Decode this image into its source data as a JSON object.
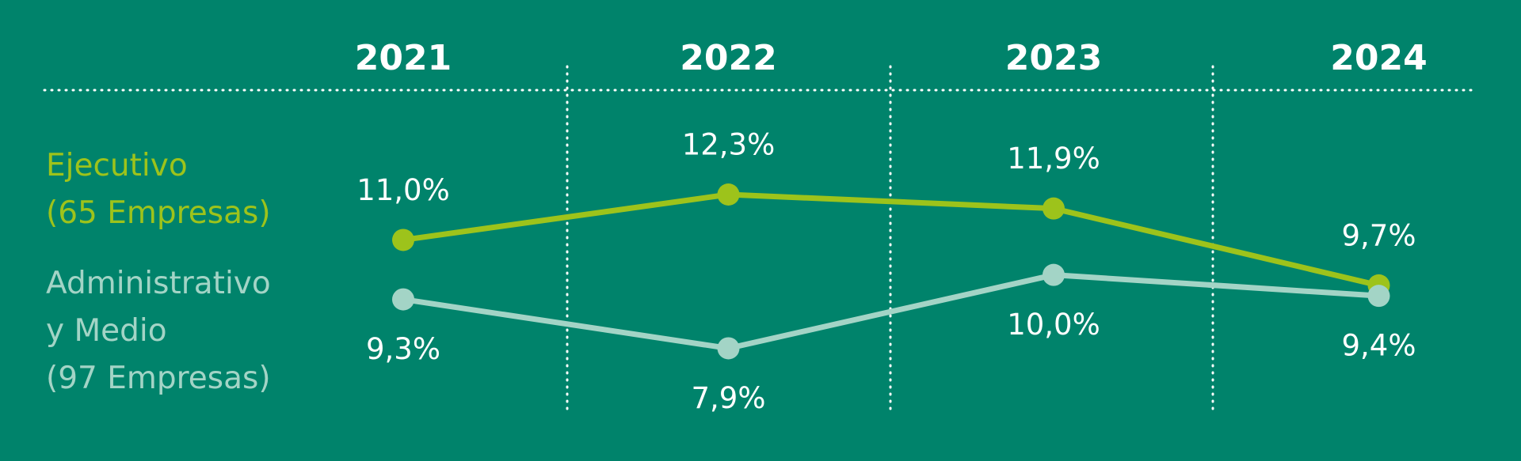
{
  "chart_data": {
    "type": "line",
    "categories": [
      "2021",
      "2022",
      "2023",
      "2024"
    ],
    "series": [
      {
        "name": "Ejecutivo\n(65 Empresas)",
        "color": "#9dc31b",
        "values": [
          11.0,
          12.3,
          11.9,
          9.7
        ],
        "value_labels": [
          "11,0%",
          "12,3%",
          "11,9%",
          "9,7%"
        ]
      },
      {
        "name": "Administrativo\ny Medio\n(97 Empresas)",
        "color": "#a3d4c6",
        "values": [
          9.3,
          7.9,
          10.0,
          9.4
        ],
        "value_labels": [
          "9,3%",
          "7,9%",
          "10,0%",
          "9,4%"
        ]
      }
    ]
  }
}
